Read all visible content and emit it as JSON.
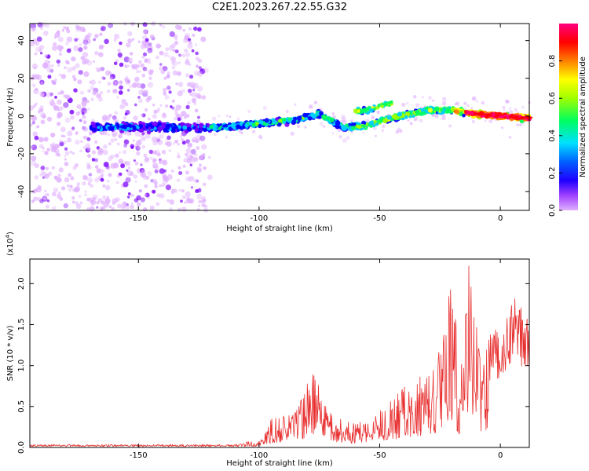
{
  "title": "C2E1.2023.267.22.55.G32",
  "chart_data": [
    {
      "type": "heatmap",
      "xlabel": "Height of straight line (km)",
      "ylabel": "Frequency (Hz)",
      "xlim": [
        -195,
        12
      ],
      "ylim": [
        -50,
        49
      ],
      "xticks": [
        -150,
        -100,
        -50,
        0
      ],
      "yticks": [
        -40,
        -20,
        0,
        20,
        40
      ],
      "colorbar": {
        "label": "Normalized spectral amplitude",
        "range": [
          0,
          1
        ],
        "ticks": [
          "0.0",
          "0.2",
          "0.4",
          "0.6",
          "0.8"
        ],
        "tick_values": [
          0,
          0.2,
          0.4,
          0.6,
          0.8
        ],
        "colors": [
          "#e0b0ff",
          "#7a00ff",
          "#0000ff",
          "#00ccff",
          "#00ff60",
          "#a0ff00",
          "#ffff00",
          "#ff8000",
          "#ff0000",
          "#ff0080"
        ]
      },
      "trend_line": [
        {
          "x": -160,
          "y": -6
        },
        {
          "x": -140,
          "y": -6
        },
        {
          "x": -125,
          "y": -6
        },
        {
          "x": -115,
          "y": -6
        },
        {
          "x": -100,
          "y": -4
        },
        {
          "x": -85,
          "y": -2
        },
        {
          "x": -75,
          "y": 1
        },
        {
          "x": -65,
          "y": -6
        },
        {
          "x": -55,
          "y": -5
        },
        {
          "x": -45,
          "y": -1
        },
        {
          "x": -30,
          "y": 3
        },
        {
          "x": -20,
          "y": 3
        },
        {
          "x": -10,
          "y": 1
        },
        {
          "x": 0,
          "y": 0
        },
        {
          "x": 10,
          "y": -1
        }
      ]
    },
    {
      "type": "line",
      "xlabel": "Height of straight line (km)",
      "ylabel": "SNR (10 * v/v)",
      "yscale_label": "(x10",
      "yscale_exponent": "4",
      "yscale_close": ")",
      "xlim": [
        -195,
        12
      ],
      "ylim": [
        0,
        2.3
      ],
      "xticks": [
        -150,
        -100,
        -50,
        0
      ],
      "yticks": [
        "0.0",
        "0.5",
        "1.0",
        "1.5",
        "2.0"
      ],
      "ytick_values": [
        0,
        0.5,
        1.0,
        1.5,
        2.0
      ],
      "color": "#e83030",
      "envelope": [
        {
          "x": -195,
          "y": 0.03
        },
        {
          "x": -110,
          "y": 0.04
        },
        {
          "x": -100,
          "y": 0.1
        },
        {
          "x": -95,
          "y": 0.35
        },
        {
          "x": -85,
          "y": 0.45
        },
        {
          "x": -78,
          "y": 0.95
        },
        {
          "x": -70,
          "y": 0.4
        },
        {
          "x": -60,
          "y": 0.3
        },
        {
          "x": -50,
          "y": 0.45
        },
        {
          "x": -40,
          "y": 0.75
        },
        {
          "x": -30,
          "y": 1.0
        },
        {
          "x": -25,
          "y": 1.2
        },
        {
          "x": -20,
          "y": 2.2
        },
        {
          "x": -17,
          "y": 1.0
        },
        {
          "x": -13,
          "y": 2.3
        },
        {
          "x": -8,
          "y": 1.3
        },
        {
          "x": 0,
          "y": 1.55
        },
        {
          "x": 5,
          "y": 1.85
        },
        {
          "x": 12,
          "y": 1.65
        }
      ]
    }
  ]
}
